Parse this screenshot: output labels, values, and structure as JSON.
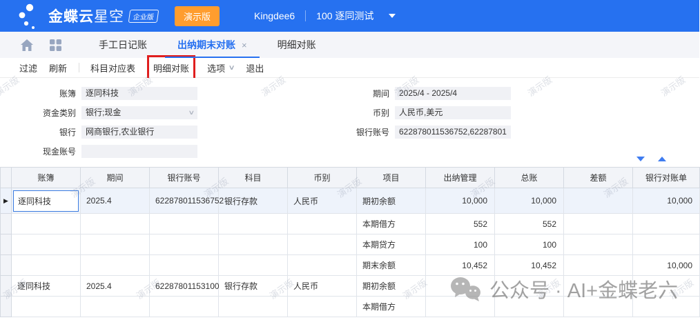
{
  "colors": {
    "topbar_blue": "#2671F0",
    "demo_badge_orange": "#FF9D2E",
    "accent_blue": "#2670F0",
    "annotation_red": "#E01E1E",
    "selected_row_bg": "#EEF3FB"
  },
  "topbar": {
    "brand_bold": "金蝶云",
    "brand_light": "星空",
    "edition_badge": "企业版",
    "demo_badge": "演示版",
    "username": "Kingdee6",
    "org": "100 逐同测试"
  },
  "tabbar": {
    "tabs": [
      {
        "name": "tab-manual-journal",
        "label": "手工日记账",
        "active": false,
        "closable": false
      },
      {
        "name": "tab-cashier-period-recon",
        "label": "出纳期末对账",
        "active": true,
        "closable": true,
        "close_glyph": "×"
      },
      {
        "name": "tab-detail-recon",
        "label": "明细对账",
        "active": false,
        "closable": false
      }
    ]
  },
  "toolbar": {
    "items": [
      {
        "name": "filter-button",
        "label": "过滤",
        "divider_after": false,
        "highlighted": false,
        "dropdown": false
      },
      {
        "name": "refresh-button",
        "label": "刷新",
        "divider_after": true,
        "highlighted": false,
        "dropdown": false
      },
      {
        "name": "account-mapping-button",
        "label": "科目对应表",
        "divider_after": false,
        "highlighted": false,
        "dropdown": false
      },
      {
        "name": "detail-recon-button",
        "label": "明细对账",
        "divider_after": false,
        "highlighted": true,
        "dropdown": false
      },
      {
        "name": "options-button",
        "label": "选项",
        "divider_after": false,
        "highlighted": false,
        "dropdown": true
      },
      {
        "name": "exit-button",
        "label": "退出",
        "divider_after": false,
        "highlighted": false,
        "dropdown": false
      }
    ],
    "dropdown_glyph": "∨"
  },
  "filters": {
    "left": [
      {
        "name": "book-field",
        "label": "账簿",
        "value": "逐同科技",
        "dropdown": false
      },
      {
        "name": "fund-type-field",
        "label": "资金类别",
        "value": "银行;现金",
        "dropdown": true
      },
      {
        "name": "bank-field",
        "label": "银行",
        "value": "网商银行,农业银行",
        "dropdown": false
      },
      {
        "name": "cash-account-field",
        "label": "现金账号",
        "value": "",
        "dropdown": false
      }
    ],
    "right": [
      {
        "name": "period-field",
        "label": "期间",
        "value": "2025/4 - 2025/4",
        "dropdown": false
      },
      {
        "name": "currency-field",
        "label": "币别",
        "value": "人民币,美元",
        "dropdown": false
      },
      {
        "name": "bank-account-field",
        "label": "银行账号",
        "value": "622878011536752,62287801",
        "dropdown": false
      }
    ]
  },
  "grid": {
    "columns": [
      "账簿",
      "期间",
      "银行账号",
      "科目",
      "币别",
      "项目",
      "出纳管理",
      "总账",
      "差额",
      "银行对账单"
    ],
    "numeric_columns": [
      6,
      7,
      8,
      9
    ],
    "rows": [
      {
        "selected": true,
        "selector_arrow": "▶",
        "edit_cell": 0,
        "cells": [
          "逐同科技",
          "2025.4",
          "622878011536752",
          "银行存款",
          "人民币",
          "期初余额",
          "10,000",
          "10,000",
          "",
          "10,000"
        ]
      },
      {
        "cells": [
          "",
          "",
          "",
          "",
          "",
          "本期借方",
          "552",
          "552",
          "",
          ""
        ]
      },
      {
        "cells": [
          "",
          "",
          "",
          "",
          "",
          "本期贷方",
          "100",
          "100",
          "",
          ""
        ]
      },
      {
        "cells": [
          "",
          "",
          "",
          "",
          "",
          "期末余额",
          "10,452",
          "10,452",
          "",
          "10,000"
        ]
      },
      {
        "cells": [
          "逐同科技",
          "2025.4",
          "62287801153100",
          "银行存款",
          "人民币",
          "期初余额",
          "",
          "",
          "",
          ""
        ]
      },
      {
        "cells": [
          "",
          "",
          "",
          "",
          "",
          "本期借方",
          "",
          "",
          "",
          ""
        ]
      }
    ]
  },
  "watermark": {
    "text": "演示版"
  },
  "footer_watermark": {
    "text": "公众号 · AI+金蝶老六"
  }
}
